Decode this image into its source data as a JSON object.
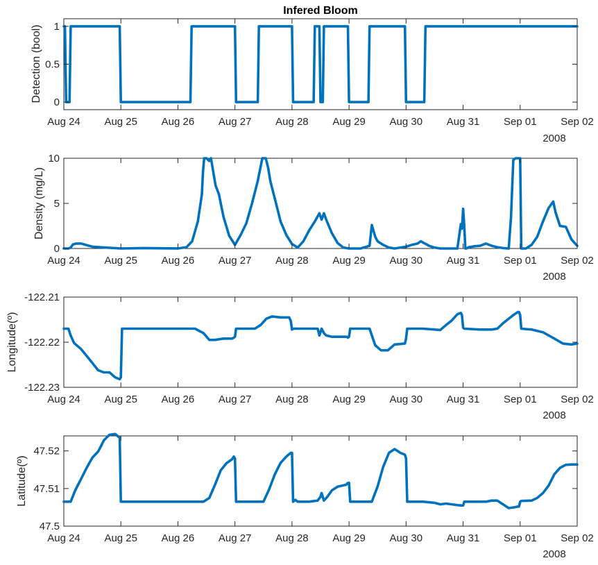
{
  "chart_data": [
    {
      "type": "line",
      "title": "Infered Bloom",
      "ylabel": "Detection (bool)",
      "xlabel": "",
      "x_ticks": [
        "Aug 24",
        "Aug 25",
        "Aug 26",
        "Aug 27",
        "Aug 28",
        "Aug 29",
        "Aug 30",
        "Aug 31",
        "Sep 01",
        "Sep 02"
      ],
      "x_year": "2008",
      "xlim": [
        0,
        9
      ],
      "ylim": [
        -0.1,
        1.1
      ],
      "y_ticks": [
        0,
        0.5,
        1
      ],
      "y_tick_labels": [
        "0",
        "0.5",
        "1"
      ],
      "series": [
        {
          "color": "#0072BD",
          "x": [
            0,
            0.02,
            0.04,
            0.08,
            0.1,
            0.12,
            0.98,
            1.0,
            1.02,
            2.22,
            2.24,
            3.0,
            3.02,
            3.4,
            3.42,
            4.0,
            4.02,
            4.38,
            4.4,
            4.48,
            4.5,
            4.54,
            4.56,
            4.58,
            4.6,
            4.98,
            5.0,
            5.34,
            5.36,
            5.98,
            6.0,
            6.32,
            6.34,
            9.0
          ],
          "y": [
            1,
            1,
            0,
            0,
            0,
            1,
            1,
            0,
            0,
            0,
            1,
            1,
            0,
            0,
            1,
            1,
            0,
            0,
            1,
            1,
            0,
            0,
            1,
            1,
            1,
            1,
            0,
            0,
            1,
            1,
            0,
            0,
            1,
            1
          ]
        }
      ]
    },
    {
      "type": "line",
      "title": "",
      "ylabel": "Density (mg/L)",
      "xlabel": "",
      "x_ticks": [
        "Aug 24",
        "Aug 25",
        "Aug 26",
        "Aug 27",
        "Aug 28",
        "Aug 29",
        "Aug 30",
        "Aug 31",
        "Sep 01",
        "Sep 02"
      ],
      "x_year": "2008",
      "xlim": [
        0,
        9
      ],
      "ylim": [
        0,
        10
      ],
      "y_ticks": [
        0,
        5,
        10
      ],
      "y_tick_labels": [
        "0",
        "5",
        "10"
      ],
      "series": [
        {
          "color": "#0072BD",
          "x": [
            0,
            0.08,
            0.12,
            0.16,
            0.22,
            0.3,
            0.5,
            1.0,
            1.4,
            2.0,
            2.15,
            2.25,
            2.35,
            2.42,
            2.44,
            2.46,
            2.5,
            2.55,
            2.58,
            2.62,
            2.66,
            2.72,
            2.8,
            2.9,
            3.0,
            3.1,
            3.2,
            3.3,
            3.4,
            3.48,
            3.5,
            3.54,
            3.58,
            3.62,
            3.66,
            3.72,
            3.8,
            3.9,
            4.0,
            4.1,
            4.2,
            4.3,
            4.4,
            4.48,
            4.52,
            4.56,
            4.6,
            4.7,
            4.8,
            4.9,
            5.0,
            5.2,
            5.36,
            5.4,
            5.46,
            5.5,
            5.6,
            5.7,
            5.8,
            6.0,
            6.1,
            6.2,
            6.26,
            6.3,
            6.36,
            6.4,
            6.5,
            6.6,
            6.7,
            6.9,
            6.96,
            6.98,
            7.0,
            7.02,
            7.04,
            7.06,
            7.1,
            7.2,
            7.3,
            7.4,
            7.5,
            7.6,
            7.7,
            7.8,
            7.84,
            7.88,
            7.92,
            7.96,
            8.0,
            8.02,
            8.1,
            8.2,
            8.3,
            8.4,
            8.5,
            8.58,
            8.62,
            8.7,
            8.8,
            8.9,
            9.0
          ],
          "y": [
            0,
            0,
            0.1,
            0.45,
            0.55,
            0.55,
            0.2,
            0,
            0.05,
            0,
            0.15,
            0.8,
            3,
            6,
            8.5,
            10,
            10,
            9.7,
            10,
            8.5,
            7,
            6,
            3.5,
            1.4,
            0.4,
            1.5,
            2.8,
            5,
            7.5,
            10,
            10,
            10,
            9,
            7.5,
            6.5,
            5,
            3,
            1.5,
            0.5,
            0.1,
            0.8,
            2,
            3,
            3.9,
            3.2,
            3.9,
            3.2,
            1.7,
            0.6,
            0.1,
            0,
            0,
            0.3,
            2.6,
            1.3,
            0.8,
            0.4,
            0.1,
            0,
            0.2,
            0.4,
            0.55,
            0.8,
            0.65,
            0.45,
            0.3,
            0.1,
            0,
            0,
            0,
            2.7,
            2.2,
            4.4,
            2.5,
            0,
            0,
            0.15,
            0.25,
            0.3,
            0.55,
            0.3,
            0.15,
            0.05,
            0,
            3.5,
            9.8,
            10,
            10,
            10,
            0,
            0,
            0.4,
            1.3,
            3,
            4.5,
            5.2,
            4,
            2.5,
            2.4,
            1,
            0.3
          ]
        }
      ]
    },
    {
      "type": "line",
      "title": "",
      "ylabel": "Longitude(º)",
      "xlabel": "",
      "x_ticks": [
        "Aug 24",
        "Aug 25",
        "Aug 26",
        "Aug 27",
        "Aug 28",
        "Aug 29",
        "Aug 30",
        "Aug 31",
        "Sep 01",
        "Sep 02"
      ],
      "x_year": "2008",
      "xlim": [
        0,
        9
      ],
      "ylim": [
        -122.23,
        -122.21
      ],
      "y_ticks": [
        -122.23,
        -122.22,
        -122.21
      ],
      "y_tick_labels": [
        "-122.23",
        "-122.22",
        "-122.21"
      ],
      "series": [
        {
          "color": "#0072BD",
          "x": [
            0,
            0.08,
            0.12,
            0.18,
            0.3,
            0.45,
            0.6,
            0.7,
            0.8,
            0.9,
            0.98,
            1.0,
            1.02,
            1.5,
            2.0,
            2.3,
            2.45,
            2.55,
            2.65,
            2.8,
            2.95,
            2.98,
            3.0,
            3.02,
            3.2,
            3.35,
            3.45,
            3.55,
            3.65,
            3.8,
            3.95,
            3.98,
            4.0,
            4.02,
            4.2,
            4.45,
            4.48,
            4.52,
            4.56,
            4.6,
            4.7,
            4.82,
            4.96,
            4.98,
            5.0,
            5.02,
            5.2,
            5.36,
            5.46,
            5.56,
            5.68,
            5.8,
            5.98,
            6.0,
            6.02,
            6.3,
            6.5,
            6.6,
            6.7,
            6.8,
            6.9,
            6.96,
            6.98,
            7.0,
            7.02,
            7.3,
            7.5,
            7.6,
            7.7,
            7.8,
            7.9,
            7.96,
            7.98,
            8.0,
            8.02,
            8.2,
            8.4,
            8.6,
            8.75,
            8.9,
            9.0
          ],
          "y": [
            -122.217,
            -122.217,
            -122.2185,
            -122.2202,
            -122.2215,
            -122.2238,
            -122.2262,
            -122.2267,
            -122.2267,
            -122.2278,
            -122.2282,
            -122.2278,
            -122.217,
            -122.217,
            -122.217,
            -122.217,
            -122.218,
            -122.2195,
            -122.2195,
            -122.2192,
            -122.2192,
            -122.219,
            -122.2188,
            -122.217,
            -122.217,
            -122.217,
            -122.2162,
            -122.2148,
            -122.2143,
            -122.2145,
            -122.2145,
            -122.2153,
            -122.2172,
            -122.217,
            -122.217,
            -122.217,
            -122.2185,
            -122.217,
            -122.218,
            -122.2185,
            -122.2188,
            -122.2188,
            -122.2188,
            -122.219,
            -122.2188,
            -122.217,
            -122.217,
            -122.217,
            -122.2207,
            -122.2218,
            -122.2218,
            -122.2205,
            -122.2203,
            -122.2192,
            -122.217,
            -122.217,
            -122.2172,
            -122.2173,
            -122.2162,
            -122.2152,
            -122.2138,
            -122.2135,
            -122.214,
            -122.2168,
            -122.217,
            -122.2172,
            -122.2172,
            -122.217,
            -122.2158,
            -122.2148,
            -122.2138,
            -122.2133,
            -122.2133,
            -122.214,
            -122.217,
            -122.2172,
            -122.2178,
            -122.2192,
            -122.2203,
            -122.2205,
            -122.2203
          ]
        }
      ]
    },
    {
      "type": "line",
      "title": "",
      "ylabel": "Latitude(º)",
      "xlabel": "",
      "x_ticks": [
        "Aug 24",
        "Aug 25",
        "Aug 26",
        "Aug 27",
        "Aug 28",
        "Aug 29",
        "Aug 30",
        "Aug 31",
        "Sep 01",
        "Sep 02"
      ],
      "x_year": "2008",
      "xlim": [
        0,
        9
      ],
      "ylim": [
        47.5,
        47.524
      ],
      "y_ticks": [
        47.5,
        47.51,
        47.52
      ],
      "y_tick_labels": [
        "47.5",
        "47.51",
        "47.52"
      ],
      "series": [
        {
          "color": "#0072BD",
          "x": [
            0,
            0.08,
            0.12,
            0.2,
            0.3,
            0.4,
            0.5,
            0.6,
            0.65,
            0.7,
            0.8,
            0.9,
            0.98,
            1.0,
            1.02,
            1.5,
            2.0,
            2.3,
            2.45,
            2.55,
            2.65,
            2.75,
            2.85,
            2.95,
            2.98,
            3.0,
            3.02,
            3.4,
            3.5,
            3.6,
            3.7,
            3.8,
            3.9,
            3.98,
            4.0,
            4.02,
            4.06,
            4.1,
            4.3,
            4.45,
            4.5,
            4.52,
            4.56,
            4.62,
            4.7,
            4.8,
            4.95,
            4.98,
            5.0,
            5.02,
            5.34,
            5.4,
            5.5,
            5.6,
            5.7,
            5.8,
            5.9,
            5.98,
            6.0,
            6.02,
            6.3,
            6.5,
            6.6,
            6.7,
            6.8,
            6.9,
            6.96,
            6.98,
            7.0,
            7.02,
            7.3,
            7.4,
            7.5,
            7.6,
            7.7,
            7.8,
            7.9,
            7.96,
            7.98,
            8.0,
            8.02,
            8.2,
            8.3,
            8.4,
            8.5,
            8.6,
            8.7,
            8.8,
            8.9,
            9.0
          ],
          "y": [
            47.5065,
            47.5065,
            47.5065,
            47.5095,
            47.5125,
            47.5155,
            47.5182,
            47.5198,
            47.5212,
            47.5228,
            47.5243,
            47.5245,
            47.5235,
            47.5065,
            47.5065,
            47.5065,
            47.5065,
            47.5065,
            47.5065,
            47.5075,
            47.511,
            47.5148,
            47.5167,
            47.5178,
            47.5185,
            47.518,
            47.5065,
            47.5065,
            47.5065,
            47.5098,
            47.5138,
            47.5168,
            47.5185,
            47.5195,
            47.5195,
            47.5065,
            47.507,
            47.5065,
            47.5065,
            47.5068,
            47.5078,
            47.5088,
            47.5068,
            47.5078,
            47.5095,
            47.5105,
            47.511,
            47.5115,
            47.5115,
            47.5065,
            47.5065,
            47.5065,
            47.5105,
            47.5158,
            47.5195,
            47.5205,
            47.5195,
            47.519,
            47.518,
            47.5065,
            47.5065,
            47.5062,
            47.5058,
            47.506,
            47.5058,
            47.5056,
            47.5055,
            47.5055,
            47.5055,
            47.5065,
            47.5065,
            47.5065,
            47.5068,
            47.5068,
            47.5058,
            47.5048,
            47.505,
            47.5052,
            47.5052,
            47.5065,
            47.5067,
            47.5068,
            47.5075,
            47.5088,
            47.5108,
            47.5138,
            47.5155,
            47.5163,
            47.5164,
            47.5164
          ]
        }
      ]
    }
  ]
}
